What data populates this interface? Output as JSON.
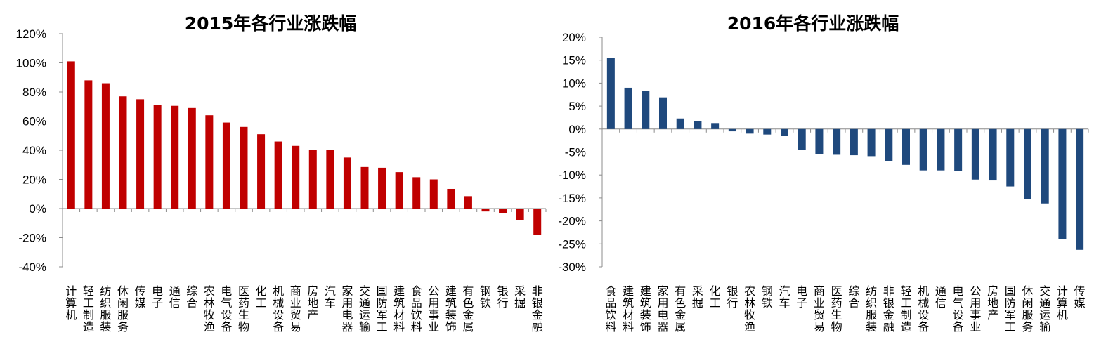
{
  "chart_data": [
    {
      "type": "bar",
      "title": "2015年各行业涨跌幅",
      "xlabel": "",
      "ylabel": "",
      "ylim": [
        -40,
        120
      ],
      "yticks": [
        -40,
        -20,
        0,
        20,
        40,
        60,
        80,
        100,
        120
      ],
      "tick_suffix": "%",
      "color": "#C00000",
      "categories": [
        "计算机",
        "轻工制造",
        "纺织服装",
        "休闲服务",
        "传媒",
        "电子",
        "通信",
        "综合",
        "农林牧渔",
        "电气设备",
        "医药生物",
        "化工",
        "机械设备",
        "商业贸易",
        "房地产",
        "汽车",
        "家用电器",
        "交通运输",
        "国防军工",
        "建筑材料",
        "食品饮料",
        "公用事业",
        "建筑装饰",
        "有色金属",
        "钢铁",
        "银行",
        "采掘",
        "非银金融"
      ],
      "values": [
        101,
        88,
        86,
        77,
        75,
        71,
        70.5,
        69,
        64,
        59,
        56,
        51,
        46,
        43,
        40,
        40,
        35,
        28.5,
        28,
        25,
        21.5,
        20,
        13.5,
        8.5,
        -2,
        -3,
        -8,
        -18
      ]
    },
    {
      "type": "bar",
      "title": "2016年各行业涨跌幅",
      "xlabel": "",
      "ylabel": "",
      "ylim": [
        -30,
        20
      ],
      "yticks": [
        -30,
        -25,
        -20,
        -15,
        -10,
        -5,
        0,
        5,
        10,
        15,
        20
      ],
      "tick_suffix": "%",
      "color": "#1F497D",
      "categories": [
        "食品饮料",
        "建筑材料",
        "建筑装饰",
        "家用电器",
        "有色金属",
        "采掘",
        "化工",
        "银行",
        "农林牧渔",
        "钢铁",
        "汽车",
        "电子",
        "商业贸易",
        "医药生物",
        "综合",
        "纺织服装",
        "非银金融",
        "轻工制造",
        "机械设备",
        "通信",
        "电气设备",
        "公用事业",
        "房地产",
        "国防军工",
        "休闲服务",
        "交通运输",
        "计算机",
        "传媒"
      ],
      "values": [
        15.5,
        9,
        8.3,
        6.9,
        2.3,
        1.8,
        1.3,
        -0.5,
        -1,
        -1.2,
        -1.5,
        -4.6,
        -5.5,
        -5.6,
        -5.7,
        -5.9,
        -7,
        -7.8,
        -9,
        -9,
        -9.2,
        -11,
        -11.2,
        -12.5,
        -15.3,
        -16.2,
        -24,
        -26.3
      ]
    }
  ]
}
